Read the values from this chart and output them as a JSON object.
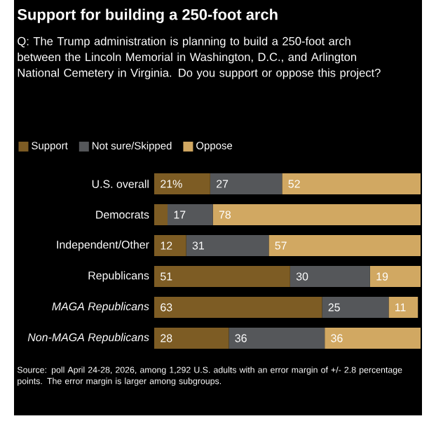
{
  "chart_data": {
    "type": "bar",
    "orientation": "horizontal",
    "stacked": true,
    "title": "Support for building a 250-foot arch",
    "subtitle": "Q: The Trump administration is planning to build a 250-foot arch between the Lincoln Memorial in Washington, D.C., and Arlington National Cemetery in Virginia. Do you support or oppose this project?",
    "categories": [
      "U.S. overall",
      "Democrats",
      "Independent/Other",
      "Republicans",
      "*MAGA Republicans*",
      "*Non-MAGA Republicans*"
    ],
    "series": [
      {
        "name": "Support",
        "color": "#7d5c24",
        "values": [
          21,
          5,
          12,
          51,
          63,
          28
        ],
        "value_labels": [
          "21%",
          null,
          "12",
          "51",
          "63",
          "28"
        ]
      },
      {
        "name": "Not sure/Skipped",
        "color": "#55575a",
        "values": [
          27,
          17,
          31,
          30,
          25,
          36
        ],
        "value_labels": [
          "27",
          "17",
          "31",
          "30",
          "25",
          "36"
        ]
      },
      {
        "name": "Oppose",
        "color": "#d1a862",
        "values": [
          52,
          78,
          57,
          19,
          11,
          36
        ],
        "value_labels": [
          "52",
          "78",
          "57",
          "19",
          "11",
          "36"
        ]
      }
    ],
    "xlim": [
      0,
      100
    ],
    "tick_labels": "y",
    "legend": "top",
    "annotations": [
      "Source: poll April 24-28, 2026, among 1,292 U.S. adults with an error margin of +/- 2.8 percentage points. The error margin is larger among subgroups."
    ]
  }
}
